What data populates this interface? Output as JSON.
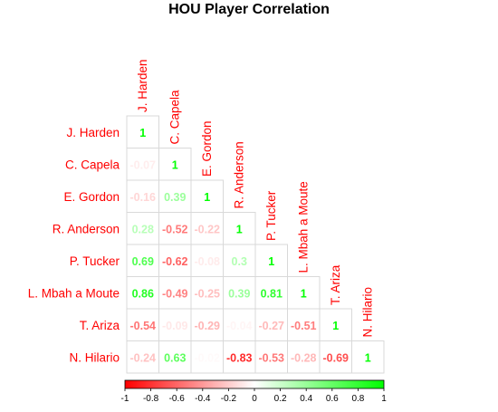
{
  "chart_data": {
    "type": "heatmap",
    "title": "HOU Player Correlation",
    "players": [
      "J. Harden",
      "C. Capela",
      "E. Gordon",
      "R. Anderson",
      "P. Tucker",
      "L. Mbah a Moute",
      "T. Ariza",
      "N. Hilario"
    ],
    "matrix_lower": [
      [
        "1"
      ],
      [
        "-0.07",
        "1"
      ],
      [
        "-0.16",
        "0.39",
        "1"
      ],
      [
        "0.28",
        "-0.52",
        "-0.22",
        "1"
      ],
      [
        "0.69",
        "-0.62",
        "-0.08",
        "0.3",
        "1"
      ],
      [
        "0.86",
        "-0.49",
        "-0.25",
        "0.39",
        "0.81",
        "1"
      ],
      [
        "-0.54",
        "-0.09",
        "-0.29",
        "-0.04",
        "-0.27",
        "-0.51",
        "1"
      ],
      [
        "-0.24",
        "0.63",
        "-0.02",
        "-0.83",
        "-0.53",
        "-0.28",
        "-0.69",
        "1"
      ]
    ],
    "colorbar": {
      "range": [
        -1,
        1
      ],
      "ticks": [
        "-1",
        "-0.8",
        "-0.6",
        "-0.4",
        "-0.2",
        "0",
        "0.2",
        "0.4",
        "0.6",
        "0.8",
        "1"
      ],
      "negative_color": "#ff0000",
      "mid_color": "#ffffff",
      "positive_color": "#00ff00"
    },
    "label_color": "#ff0000",
    "legend_position": "bottom"
  }
}
